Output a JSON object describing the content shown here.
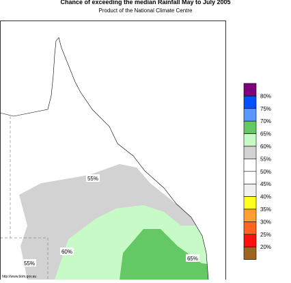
{
  "title": "Chance of exceeding the median Rainfall May to July 2005",
  "subtitle": "Product of the National Climate Centre",
  "legend": {
    "colors": [
      "#7f007f",
      "#0050ff",
      "#5a96ff",
      "#64c864",
      "#c8fac8",
      "#d2d2d2",
      "#ffffff",
      "#ffffff",
      "#f0f0f0",
      "#ffff20",
      "#ffa030",
      "#ff6420",
      "#ff1010",
      "#a06420"
    ],
    "labels": [
      "80%",
      "75%",
      "70%",
      "65%",
      "60%",
      "55%",
      "50%",
      "45%",
      "40%",
      "35%",
      "30%",
      "25%",
      "20%"
    ]
  },
  "map": {
    "contour_labels": [
      "55%",
      "60%",
      "65%",
      "55%"
    ],
    "credit": "http://www.bom.gov.au"
  }
}
